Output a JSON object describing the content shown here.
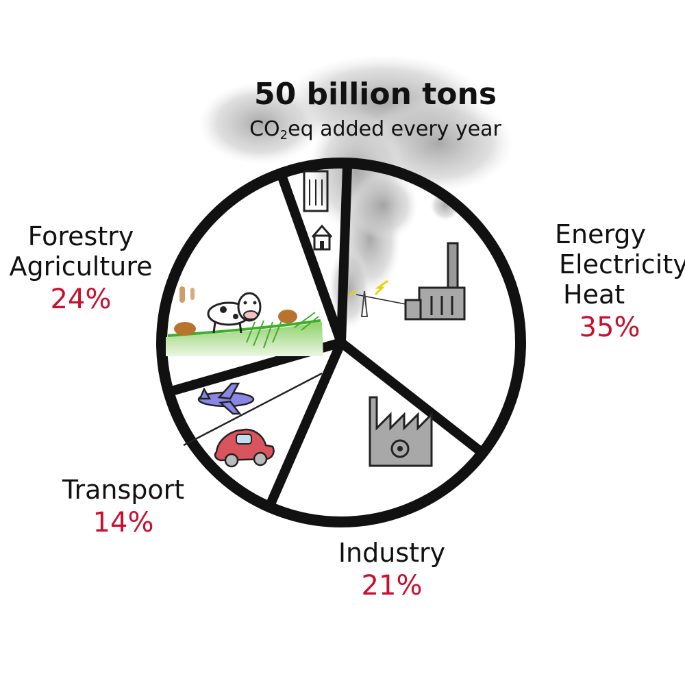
{
  "chart_data": {
    "type": "pie",
    "title": "50 billion tons",
    "subtitle_parts": [
      "CO",
      "2",
      "eq added every year"
    ],
    "slices": [
      {
        "label_lines": [
          "Energy",
          "Electricity",
          "Heat"
        ],
        "value": 35,
        "value_label": "35%"
      },
      {
        "label_lines": [
          "Industry"
        ],
        "value": 21,
        "value_label": "21%"
      },
      {
        "label_lines": [
          "Transport"
        ],
        "value": 14,
        "value_label": "14%"
      },
      {
        "label_lines": [
          "Forestry",
          "Agriculture"
        ],
        "value": 24,
        "value_label": "24%"
      },
      {
        "label_lines": [],
        "value": 6,
        "value_label": ""
      }
    ],
    "percent_color": "#c8102e",
    "outline_color": "#111111",
    "smoke_color": "#bfbfbf"
  }
}
